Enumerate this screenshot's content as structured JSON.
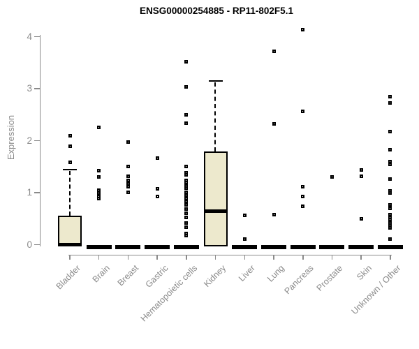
{
  "title": "ENSG00000254885 - RP11-802F5.1",
  "chart_data": {
    "type": "boxplot",
    "title": "ENSG00000254885 - RP11-802F5.1",
    "xlabel": "",
    "ylabel": "Expression",
    "ylim": [
      0,
      4
    ],
    "yticks": [
      0,
      1,
      2,
      3,
      4
    ],
    "grid": false,
    "legend": "none",
    "colors": {
      "box_fill": "#EDE9CD",
      "box_border": "#000000",
      "median": "#000000",
      "whisker": "#000000",
      "axis": "#8A8A8A",
      "tick_label": "#8A8A8A",
      "title": "#000000"
    },
    "categories": [
      "Bladder",
      "Brain",
      "Breast",
      "Gastric",
      "Hematopoietic cells",
      "Kidney",
      "Liver",
      "Lung",
      "Pancreas",
      "Prostate",
      "Skin",
      "Unknown / Other"
    ],
    "boxes": [
      {
        "category": "Bladder",
        "q1": 0,
        "median": 0,
        "q3": 0.56,
        "whisker_low": 0,
        "whisker_high": 1.44,
        "outliers": [
          1.59,
          1.89,
          2.09
        ]
      },
      {
        "category": "Brain",
        "q1": 0,
        "median": 0,
        "q3": 0,
        "whisker_low": 0,
        "whisker_high": 0,
        "outliers": [
          0.88,
          0.93,
          0.99,
          1.05,
          1.3,
          1.42,
          2.25
        ]
      },
      {
        "category": "Breast",
        "q1": 0,
        "median": 0,
        "q3": 0,
        "whisker_low": 0,
        "whisker_high": 0,
        "outliers": [
          1.01,
          1.12,
          1.17,
          1.24,
          1.31,
          1.51,
          1.97
        ]
      },
      {
        "category": "Gastric",
        "q1": 0,
        "median": 0,
        "q3": 0,
        "whisker_low": 0,
        "whisker_high": 0,
        "outliers": [
          0.92,
          1.08,
          1.67
        ]
      },
      {
        "category": "Hematopoietic cells",
        "q1": 0,
        "median": 0,
        "q3": 0,
        "whisker_low": 0,
        "whisker_high": 0,
        "outliers": [
          0.18,
          0.22,
          0.34,
          0.41,
          0.52,
          0.61,
          0.68,
          0.77,
          0.83,
          0.88,
          0.95,
          1.01,
          1.09,
          1.13,
          1.19,
          1.24,
          1.34,
          1.38,
          1.51,
          2.33,
          2.49,
          3.03,
          3.52
        ]
      },
      {
        "category": "Kidney",
        "q1": 0,
        "median": 0.65,
        "q3": 1.79,
        "whisker_low": 0,
        "whisker_high": 3.15,
        "outliers": []
      },
      {
        "category": "Liver",
        "q1": 0,
        "median": 0,
        "q3": 0,
        "whisker_low": 0,
        "whisker_high": 0,
        "outliers": [
          0.11,
          0.56
        ]
      },
      {
        "category": "Lung",
        "q1": 0,
        "median": 0,
        "q3": 0,
        "whisker_low": 0,
        "whisker_high": 0,
        "outliers": [
          0.58,
          2.32,
          3.72
        ]
      },
      {
        "category": "Pancreas",
        "q1": 0,
        "median": 0,
        "q3": 0,
        "whisker_low": 0,
        "whisker_high": 0,
        "outliers": [
          0.74,
          0.93,
          1.11,
          2.56,
          4.14
        ]
      },
      {
        "category": "Prostate",
        "q1": 0,
        "median": 0,
        "q3": 0,
        "whisker_low": 0,
        "whisker_high": 0,
        "outliers": [
          1.3
        ]
      },
      {
        "category": "Skin",
        "q1": 0,
        "median": 0,
        "q3": 0,
        "whisker_low": 0,
        "whisker_high": 0,
        "outliers": [
          0.5,
          1.32,
          1.44
        ]
      },
      {
        "category": "Unknown / Other",
        "q1": 0,
        "median": 0,
        "q3": 0,
        "whisker_low": 0,
        "whisker_high": 0,
        "outliers": [
          0.11,
          0.32,
          0.37,
          0.42,
          0.48,
          0.53,
          0.58,
          0.7,
          0.76,
          0.99,
          1.04,
          1.26,
          1.55,
          1.6,
          1.82,
          2.17,
          2.72,
          2.84
        ]
      }
    ]
  }
}
